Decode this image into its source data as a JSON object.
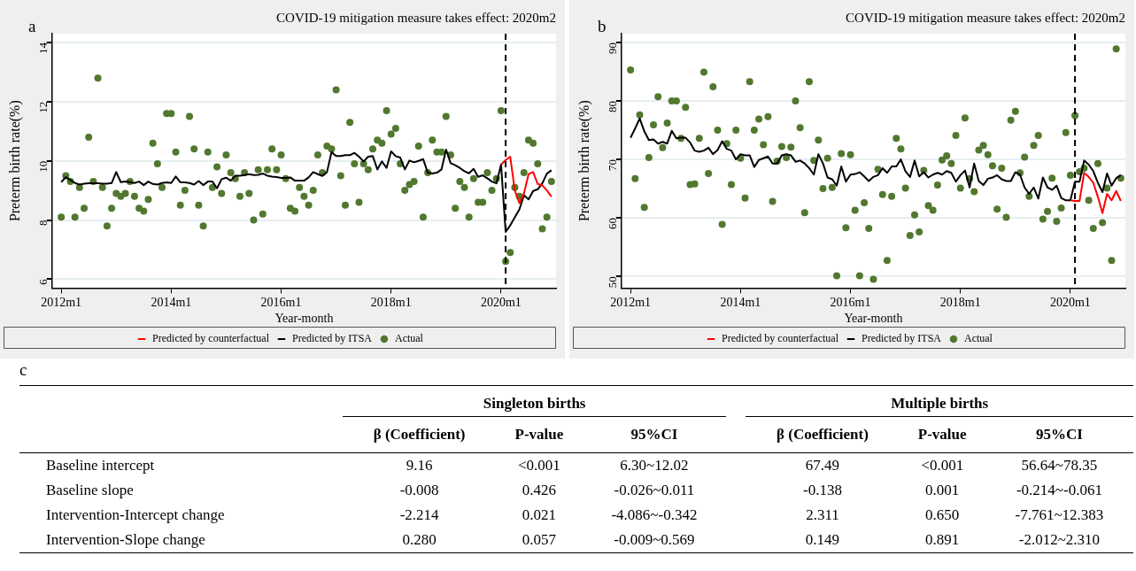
{
  "chart_data": [
    {
      "type": "line",
      "title": "COVID-19 mitigation measure takes effect: 2020m2",
      "annotations": [
        "a"
      ],
      "xlabel": "Year-month",
      "ylabel": "Preterm birth rate(%)",
      "x": [
        "2012-01",
        "2012-02",
        "2012-03",
        "2012-04",
        "2012-05",
        "2012-06",
        "2012-07",
        "2012-08",
        "2012-09",
        "2012-10",
        "2012-11",
        "2012-12",
        "2013-01",
        "2013-02",
        "2013-03",
        "2013-04",
        "2013-05",
        "2013-06",
        "2013-07",
        "2013-08",
        "2013-09",
        "2013-10",
        "2013-11",
        "2013-12",
        "2014-01",
        "2014-02",
        "2014-03",
        "2014-04",
        "2014-05",
        "2014-06",
        "2014-07",
        "2014-08",
        "2014-09",
        "2014-10",
        "2014-11",
        "2014-12",
        "2015-01",
        "2015-02",
        "2015-03",
        "2015-04",
        "2015-05",
        "2015-06",
        "2015-07",
        "2015-08",
        "2015-09",
        "2015-10",
        "2015-11",
        "2015-12",
        "2016-01",
        "2016-02",
        "2016-03",
        "2016-04",
        "2016-05",
        "2016-06",
        "2016-07",
        "2016-08",
        "2016-09",
        "2016-10",
        "2016-11",
        "2016-12",
        "2017-01",
        "2017-02",
        "2017-03",
        "2017-04",
        "2017-05",
        "2017-06",
        "2017-07",
        "2017-08",
        "2017-09",
        "2017-10",
        "2017-11",
        "2017-12",
        "2018-01",
        "2018-02",
        "2018-03",
        "2018-04",
        "2018-05",
        "2018-06",
        "2018-07",
        "2018-08",
        "2018-09",
        "2018-10",
        "2018-11",
        "2018-12",
        "2019-01",
        "2019-02",
        "2019-03",
        "2019-04",
        "2019-05",
        "2019-06",
        "2019-07",
        "2019-08",
        "2019-09",
        "2019-10",
        "2019-11",
        "2019-12",
        "2020-01",
        "2020-02",
        "2020-03",
        "2020-04",
        "2020-05",
        "2020-06",
        "2020-07",
        "2020-08",
        "2020-09",
        "2020-10",
        "2020-11",
        "2020-12"
      ],
      "series": [
        {
          "name": "Predicted by counterfactual",
          "type": "line",
          "marker": "none",
          "color": "#ff0000",
          "values": [
            null,
            null,
            null,
            null,
            null,
            null,
            null,
            null,
            null,
            null,
            null,
            null,
            null,
            null,
            null,
            null,
            null,
            null,
            null,
            null,
            null,
            null,
            null,
            null,
            null,
            null,
            null,
            null,
            null,
            null,
            null,
            null,
            null,
            null,
            null,
            null,
            null,
            null,
            null,
            null,
            null,
            null,
            null,
            null,
            null,
            null,
            null,
            null,
            null,
            null,
            null,
            null,
            null,
            null,
            null,
            null,
            null,
            null,
            null,
            null,
            null,
            null,
            null,
            null,
            null,
            null,
            null,
            null,
            null,
            null,
            null,
            null,
            null,
            null,
            null,
            null,
            null,
            null,
            null,
            null,
            null,
            null,
            null,
            null,
            null,
            null,
            null,
            null,
            null,
            null,
            null,
            null,
            null,
            null,
            null,
            null,
            9.87,
            10.03,
            10.14,
            9.0,
            8.57,
            8.9,
            9.55,
            9.62,
            9.22,
            9.17,
            9.0,
            8.79
          ]
        },
        {
          "name": "Predicted by ITSA",
          "type": "line",
          "marker": "none",
          "color": "#000000",
          "values": [
            9.28,
            9.45,
            9.35,
            9.25,
            9.2,
            9.23,
            9.24,
            9.24,
            9.24,
            9.23,
            9.23,
            9.25,
            9.62,
            9.28,
            9.3,
            9.28,
            9.25,
            9.3,
            9.18,
            9.3,
            9.22,
            9.2,
            9.25,
            9.27,
            9.25,
            9.47,
            9.28,
            9.27,
            9.25,
            9.2,
            9.32,
            9.18,
            9.3,
            9.3,
            9.07,
            9.38,
            9.43,
            9.33,
            9.5,
            9.5,
            9.52,
            9.55,
            9.52,
            9.53,
            9.57,
            9.5,
            9.47,
            9.45,
            9.42,
            9.42,
            9.44,
            9.33,
            9.33,
            9.33,
            9.44,
            9.62,
            9.55,
            9.49,
            9.62,
            10.3,
            10.16,
            10.16,
            10.19,
            10.19,
            10.27,
            10.14,
            9.98,
            10.14,
            10.16,
            9.71,
            9.98,
            9.76,
            10.32,
            10.16,
            10.11,
            9.71,
            10.01,
            9.95,
            10.0,
            10.06,
            9.6,
            9.57,
            9.6,
            9.71,
            10.38,
            9.92,
            9.85,
            9.76,
            9.65,
            9.58,
            9.73,
            9.46,
            9.51,
            9.41,
            9.3,
            9.24,
            9.87,
            7.6,
            7.82,
            8.09,
            8.36,
            8.84,
            8.7,
            8.98,
            9.04,
            9.24,
            9.57,
            9.68
          ]
        },
        {
          "name": "Actual",
          "type": "scatter",
          "marker": "circle",
          "color": "#52782f",
          "values": [
            8.1,
            9.5,
            9.3,
            8.1,
            9.1,
            8.4,
            10.8,
            9.3,
            12.8,
            9.1,
            7.8,
            8.4,
            8.9,
            8.8,
            8.9,
            9.3,
            8.8,
            8.4,
            8.3,
            8.7,
            10.6,
            9.9,
            9.1,
            11.6,
            11.6,
            10.3,
            8.5,
            9.0,
            11.5,
            10.4,
            8.5,
            7.8,
            10.3,
            9.1,
            9.8,
            8.9,
            10.2,
            9.6,
            9.4,
            8.8,
            9.6,
            8.9,
            8.0,
            9.7,
            8.2,
            9.7,
            10.4,
            9.7,
            10.2,
            9.4,
            8.4,
            8.3,
            9.1,
            8.8,
            8.5,
            9.0,
            10.2,
            9.6,
            10.5,
            10.4,
            12.4,
            9.5,
            8.5,
            11.3,
            9.9,
            8.6,
            9.9,
            9.7,
            10.4,
            10.7,
            10.6,
            11.7,
            10.9,
            11.1,
            9.9,
            9.0,
            9.2,
            9.3,
            10.5,
            8.1,
            9.6,
            10.7,
            10.3,
            10.3,
            11.5,
            10.2,
            8.4,
            9.3,
            9.1,
            8.1,
            9.4,
            8.6,
            8.6,
            9.6,
            9.0,
            9.4,
            11.7,
            6.6,
            6.9,
            9.1,
            8.8,
            9.6,
            10.7,
            10.6,
            9.9,
            7.7,
            8.1,
            9.3
          ]
        }
      ],
      "xlim": [
        "2011-11",
        "2021-01"
      ],
      "xticks": [
        {
          "value": "2012-01",
          "label": "2012m1"
        },
        {
          "value": "2014-01",
          "label": "2014m1"
        },
        {
          "value": "2016-01",
          "label": "2016m1"
        },
        {
          "value": "2018-01",
          "label": "2018m1"
        },
        {
          "value": "2020-01",
          "label": "2020m1"
        }
      ],
      "ylim": [
        5.7,
        14.3
      ],
      "yticks": [
        6,
        8,
        10,
        12,
        14
      ],
      "ref_lines": [
        {
          "axis": "x",
          "value": "2020-02",
          "line_style": "dashed",
          "color": "#000000"
        }
      ],
      "grid": "y",
      "legend": "bottom"
    },
    {
      "type": "line",
      "title": "COVID-19 mitigation measure takes effect: 2020m2",
      "annotations": [
        "b"
      ],
      "xlabel": "Year-month",
      "ylabel": "Preterm birth rate(%)",
      "x": [
        "2012-01",
        "2012-02",
        "2012-03",
        "2012-04",
        "2012-05",
        "2012-06",
        "2012-07",
        "2012-08",
        "2012-09",
        "2012-10",
        "2012-11",
        "2012-12",
        "2013-01",
        "2013-02",
        "2013-03",
        "2013-04",
        "2013-05",
        "2013-06",
        "2013-07",
        "2013-08",
        "2013-09",
        "2013-10",
        "2013-11",
        "2013-12",
        "2014-01",
        "2014-02",
        "2014-03",
        "2014-04",
        "2014-05",
        "2014-06",
        "2014-07",
        "2014-08",
        "2014-09",
        "2014-10",
        "2014-11",
        "2014-12",
        "2015-01",
        "2015-02",
        "2015-03",
        "2015-04",
        "2015-05",
        "2015-06",
        "2015-07",
        "2015-08",
        "2015-09",
        "2015-10",
        "2015-11",
        "2015-12",
        "2016-01",
        "2016-02",
        "2016-03",
        "2016-04",
        "2016-05",
        "2016-06",
        "2016-07",
        "2016-08",
        "2016-09",
        "2016-10",
        "2016-11",
        "2016-12",
        "2017-01",
        "2017-02",
        "2017-03",
        "2017-04",
        "2017-05",
        "2017-06",
        "2017-07",
        "2017-08",
        "2017-09",
        "2017-10",
        "2017-11",
        "2017-12",
        "2018-01",
        "2018-02",
        "2018-03",
        "2018-04",
        "2018-05",
        "2018-06",
        "2018-07",
        "2018-08",
        "2018-09",
        "2018-10",
        "2018-11",
        "2018-12",
        "2019-01",
        "2019-02",
        "2019-03",
        "2019-04",
        "2019-05",
        "2019-06",
        "2019-07",
        "2019-08",
        "2019-09",
        "2019-10",
        "2019-11",
        "2019-12",
        "2020-01",
        "2020-02",
        "2020-03",
        "2020-04",
        "2020-05",
        "2020-06",
        "2020-07",
        "2020-08",
        "2020-09",
        "2020-10",
        "2020-11",
        "2020-12"
      ],
      "series": [
        {
          "name": "Predicted by counterfactual",
          "type": "line",
          "marker": "none",
          "color": "#ff0000",
          "values": [
            null,
            null,
            null,
            null,
            null,
            null,
            null,
            null,
            null,
            null,
            null,
            null,
            null,
            null,
            null,
            null,
            null,
            null,
            null,
            null,
            null,
            null,
            null,
            null,
            null,
            null,
            null,
            null,
            null,
            null,
            null,
            null,
            null,
            null,
            null,
            null,
            null,
            null,
            null,
            null,
            null,
            null,
            null,
            null,
            null,
            null,
            null,
            null,
            null,
            null,
            null,
            null,
            null,
            null,
            null,
            null,
            null,
            null,
            null,
            null,
            null,
            null,
            null,
            null,
            null,
            null,
            null,
            null,
            null,
            null,
            null,
            null,
            null,
            null,
            null,
            null,
            null,
            null,
            null,
            null,
            null,
            null,
            null,
            null,
            null,
            null,
            null,
            null,
            null,
            null,
            null,
            null,
            null,
            null,
            null,
            null,
            63.0,
            62.9,
            62.9,
            67.7,
            67.0,
            66.0,
            63.6,
            60.8,
            64.1,
            63.0,
            64.6,
            62.9
          ]
        },
        {
          "name": "Predicted by ITSA",
          "type": "line",
          "marker": "none",
          "color": "#000000",
          "values": [
            73.7,
            75.3,
            77.0,
            74.8,
            73.3,
            73.4,
            72.7,
            73.0,
            72.7,
            74.9,
            73.6,
            73.7,
            73.7,
            72.9,
            71.5,
            71.3,
            71.5,
            72.0,
            70.9,
            71.6,
            73.1,
            71.8,
            71.5,
            70.0,
            70.9,
            70.7,
            70.7,
            68.7,
            69.9,
            70.2,
            70.5,
            69.3,
            69.3,
            70.7,
            70.9,
            70.7,
            69.6,
            69.8,
            69.3,
            68.5,
            67.4,
            70.9,
            69.3,
            66.9,
            66.6,
            65.5,
            68.8,
            66.2,
            67.4,
            67.5,
            67.8,
            67.1,
            66.3,
            67.0,
            67.3,
            68.5,
            67.7,
            68.8,
            68.8,
            70.0,
            68.0,
            67.0,
            69.8,
            67.1,
            67.8,
            66.9,
            67.4,
            67.7,
            67.4,
            68.0,
            67.7,
            66.2,
            67.3,
            68.1,
            65.2,
            69.3,
            66.3,
            65.6,
            66.7,
            66.9,
            67.3,
            66.6,
            66.3,
            66.3,
            67.8,
            67.4,
            65.2,
            64.1,
            65.2,
            63.3,
            66.9,
            65.2,
            64.8,
            65.5,
            63.4,
            63.0,
            63.0,
            66.2,
            66.2,
            69.8,
            69.1,
            68.0,
            66.0,
            64.4,
            67.6,
            65.5,
            66.8,
            67.3
          ]
        },
        {
          "name": "Actual",
          "type": "scatter",
          "marker": "circle",
          "color": "#52782f",
          "values": [
            85.3,
            66.7,
            77.6,
            61.8,
            70.3,
            75.9,
            80.7,
            72.0,
            76.2,
            80.0,
            80.0,
            73.6,
            78.9,
            65.7,
            65.8,
            73.6,
            84.9,
            67.6,
            82.4,
            75.0,
            58.9,
            72.7,
            65.7,
            75.0,
            70.2,
            63.4,
            83.3,
            75.0,
            76.9,
            72.5,
            77.3,
            62.8,
            69.7,
            72.2,
            70.3,
            72.1,
            80.0,
            75.4,
            60.9,
            83.3,
            69.8,
            73.3,
            65.0,
            70.2,
            65.2,
            50.1,
            71.0,
            58.3,
            70.8,
            61.3,
            50.1,
            62.6,
            58.2,
            49.5,
            68.3,
            64.0,
            52.7,
            63.7,
            73.6,
            71.8,
            65.1,
            57.0,
            60.5,
            57.6,
            68.1,
            62.1,
            61.3,
            65.6,
            69.9,
            70.6,
            69.3,
            74.1,
            65.1,
            77.1,
            66.7,
            64.5,
            71.6,
            72.4,
            70.8,
            68.9,
            61.5,
            68.5,
            60.1,
            76.7,
            78.2,
            67.7,
            70.4,
            63.7,
            72.4,
            74.1,
            59.8,
            61.1,
            66.8,
            59.4,
            61.7,
            74.6,
            67.3,
            77.5,
            67.9,
            68.5,
            63.0,
            58.2,
            69.3,
            59.2,
            65.1,
            52.7,
            88.9,
            66.8
          ]
        }
      ],
      "xlim": [
        "2011-11",
        "2021-01"
      ],
      "xticks": [
        {
          "value": "2012-01",
          "label": "2012m1"
        },
        {
          "value": "2014-01",
          "label": "2014m1"
        },
        {
          "value": "2016-01",
          "label": "2016m1"
        },
        {
          "value": "2018-01",
          "label": "2018m1"
        },
        {
          "value": "2020-01",
          "label": "2020m1"
        }
      ],
      "ylim": [
        48,
        91.5
      ],
      "yticks": [
        50,
        60,
        70,
        80,
        90
      ],
      "ref_lines": [
        {
          "axis": "x",
          "value": "2020-02",
          "line_style": "dashed",
          "color": "#000000"
        }
      ],
      "grid": "y",
      "legend": "bottom"
    },
    {
      "type": "other",
      "title": "c",
      "annotations": [
        "Singleton births",
        "Multiple births"
      ],
      "categories": [
        "β (Coefficient)",
        "P-value",
        "95%CI",
        "β (Coefficient)",
        "P-value",
        "95%CI"
      ],
      "y_categories": [
        "Baseline intercept",
        "Baseline slope",
        "Intervention-Intercept change",
        "Intervention-Slope change"
      ],
      "cell_labels": [
        [
          "9.16",
          "<0.001",
          "6.30~12.02",
          "67.49",
          "<0.001",
          "56.64~78.35"
        ],
        [
          "-0.008",
          "0.426",
          "-0.026~0.011",
          "-0.138",
          "0.001",
          "-0.214~-0.061"
        ],
        [
          "-2.214",
          "0.021",
          "-4.086~-0.342",
          "2.311",
          "0.650",
          "-7.761~12.383"
        ],
        [
          "0.280",
          "0.057",
          "-0.009~0.569",
          "0.149",
          "0.891",
          "-2.012~2.310"
        ]
      ]
    }
  ]
}
